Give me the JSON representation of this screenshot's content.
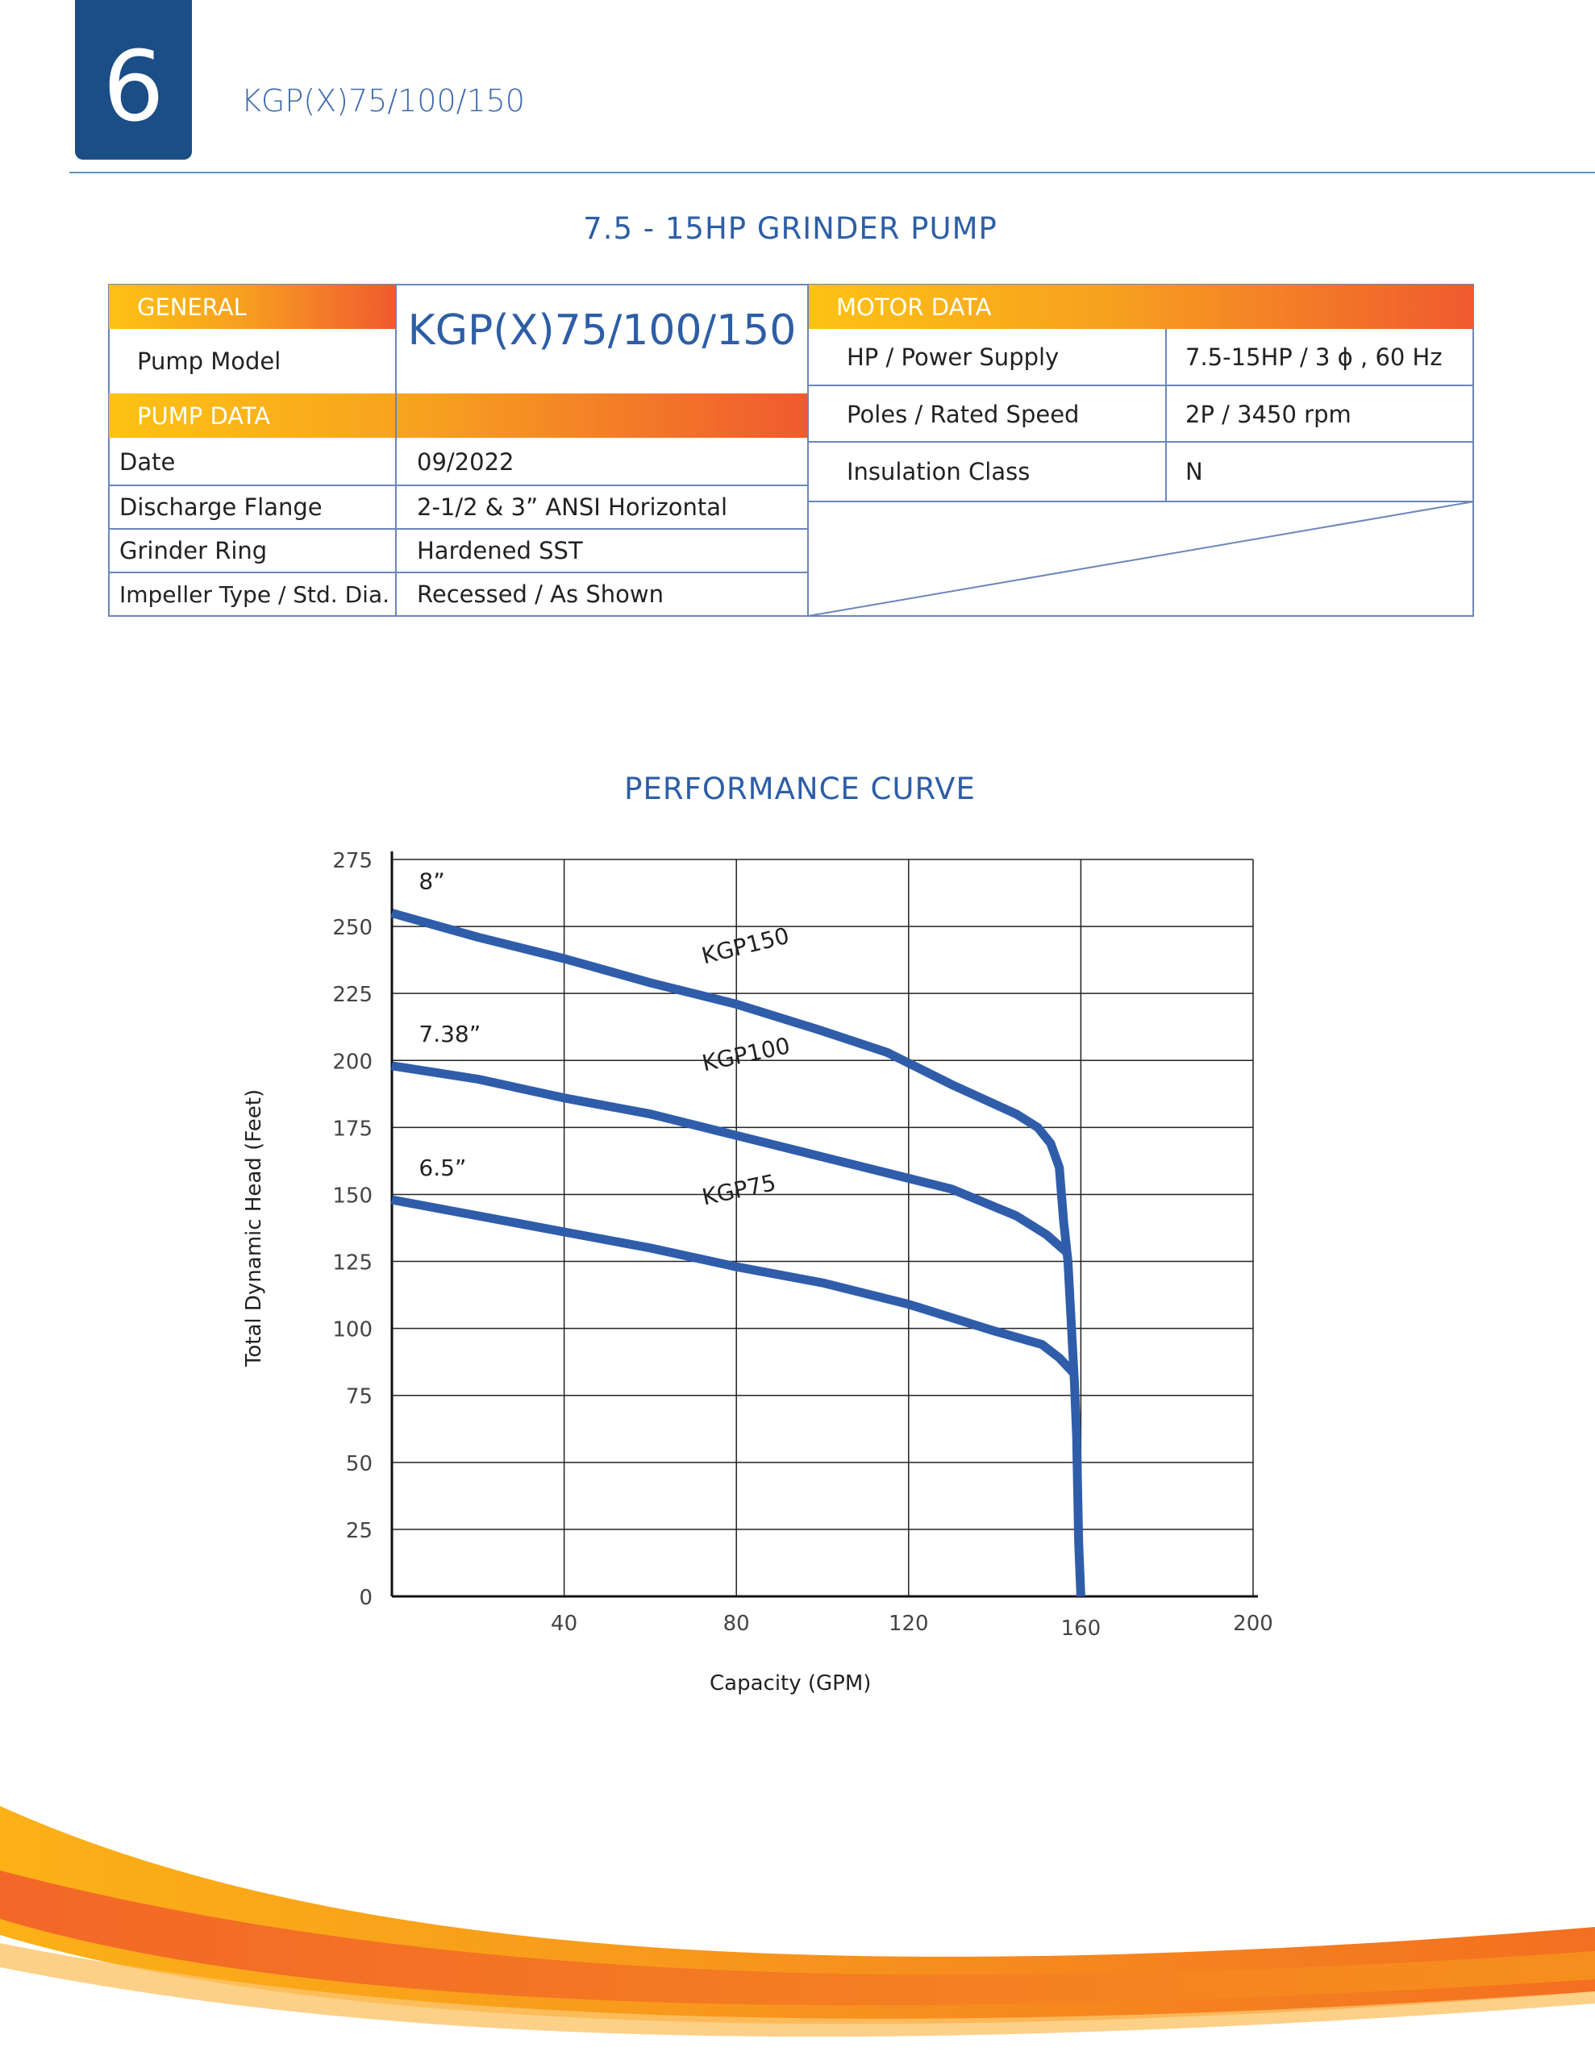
{
  "header": {
    "page_number": "6",
    "model_title": "KGP(X)75/100/150"
  },
  "section_title": "7.5 - 15HP GRINDER PUMP",
  "general": {
    "header": "GENERAL",
    "pump_model_label": "Pump Model",
    "pump_model_value": "KGP(X)75/100/150"
  },
  "pump_data": {
    "header": "PUMP DATA",
    "rows": [
      {
        "label": "Date",
        "value": "09/2022"
      },
      {
        "label": "Discharge Flange",
        "value": "2-1/2 & 3” ANSI Horizontal"
      },
      {
        "label": "Grinder Ring",
        "value": "Hardened SST"
      },
      {
        "label": "Impeller Type / Std. Dia.",
        "value": "Recessed / As Shown"
      }
    ]
  },
  "motor_data": {
    "header": "MOTOR DATA",
    "rows": [
      {
        "label": "HP / Power Supply",
        "value": "7.5-15HP / 3 ϕ , 60 Hz"
      },
      {
        "label": "Poles / Rated Speed",
        "value": "2P / 3450 rpm"
      },
      {
        "label": "Insulation Class",
        "value": "N"
      }
    ]
  },
  "colors": {
    "brand_blue": "#1b4d86",
    "title_blue": "#2d5ea6",
    "curve_blue": "#2f5daa",
    "gradient_start": "#fdc214",
    "gradient_end": "#f05a2f"
  },
  "chart_data": {
    "type": "line",
    "title": "PERFORMANCE CURVE",
    "xlabel": "Capacity (GPM)",
    "ylabel": "Total Dynamic Head (Feet)",
    "xlim": [
      0,
      200
    ],
    "ylim": [
      0,
      275
    ],
    "x_ticks": [
      "40",
      "80",
      "120",
      "160",
      "200"
    ],
    "y_ticks": [
      "0",
      "25",
      "50",
      "75",
      "100",
      "125",
      "150",
      "175",
      "200",
      "225",
      "250",
      "275"
    ],
    "grid": true,
    "series": [
      {
        "name": "KGP150",
        "diameter": "8”",
        "points": [
          [
            0,
            255
          ],
          [
            20,
            246
          ],
          [
            40,
            238
          ],
          [
            60,
            229
          ],
          [
            80,
            221
          ],
          [
            100,
            211
          ],
          [
            115,
            203
          ],
          [
            130,
            191
          ],
          [
            145,
            180
          ],
          [
            150,
            175
          ],
          [
            153,
            169
          ],
          [
            155,
            160
          ],
          [
            156,
            140
          ],
          [
            157,
            125
          ],
          [
            158,
            95
          ],
          [
            158.5,
            80
          ],
          [
            159,
            60
          ],
          [
            159.5,
            20
          ],
          [
            160,
            0
          ]
        ]
      },
      {
        "name": "KGP100",
        "diameter": "7.38”",
        "points": [
          [
            0,
            198
          ],
          [
            20,
            193
          ],
          [
            40,
            186
          ],
          [
            60,
            180
          ],
          [
            80,
            172
          ],
          [
            100,
            164
          ],
          [
            120,
            156
          ],
          [
            130,
            152
          ],
          [
            145,
            142
          ],
          [
            152,
            135
          ],
          [
            157,
            128
          ]
        ]
      },
      {
        "name": "KGP75",
        "diameter": "6.5”",
        "points": [
          [
            0,
            148
          ],
          [
            20,
            142
          ],
          [
            40,
            136
          ],
          [
            60,
            130
          ],
          [
            80,
            123
          ],
          [
            100,
            117
          ],
          [
            120,
            109
          ],
          [
            140,
            99
          ],
          [
            151,
            94
          ],
          [
            155,
            89
          ],
          [
            158.5,
            83
          ]
        ]
      }
    ]
  }
}
